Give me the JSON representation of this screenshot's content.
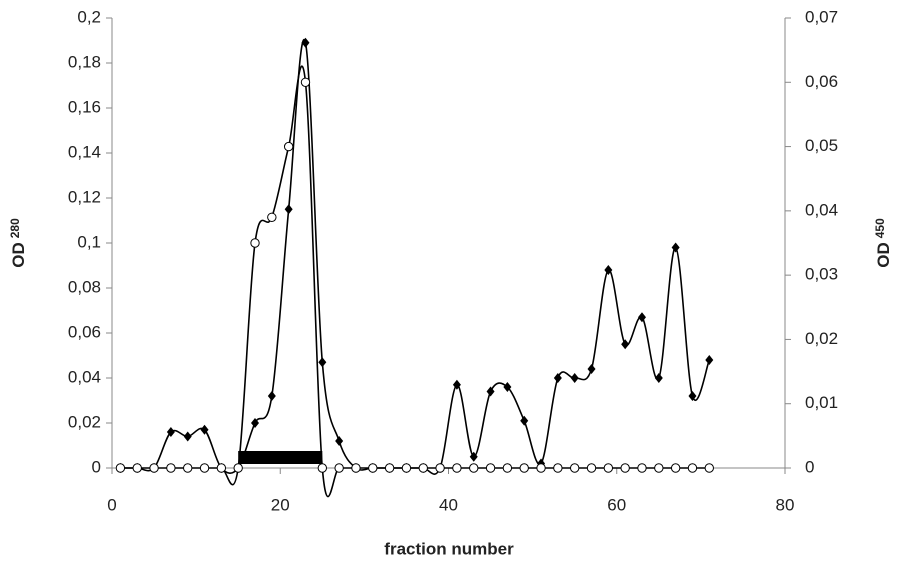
{
  "chart_data": {
    "type": "line",
    "x_label": "fraction number",
    "y_label": "OD",
    "y_label_subscript": "280",
    "y2_label": "OD",
    "y2_label_subscript": "450",
    "x": [
      1,
      3,
      5,
      7,
      9,
      11,
      13,
      15,
      17,
      19,
      21,
      23,
      25,
      27,
      29,
      31,
      33,
      35,
      37,
      39,
      41,
      43,
      45,
      47,
      49,
      51,
      53,
      55,
      57,
      59,
      61,
      63,
      65,
      67,
      69,
      71
    ],
    "series": [
      {
        "marker": "diamond",
        "color": "#000000",
        "axis": "y",
        "values": [
          0,
          0,
          0,
          0.016,
          0.014,
          0.017,
          0,
          0,
          0.02,
          0.032,
          0.115,
          0.189,
          0.047,
          0.012,
          0,
          0,
          0,
          0,
          0,
          0,
          0.037,
          0.005,
          0.034,
          0.036,
          0.021,
          0.002,
          0.04,
          0.04,
          0.044,
          0.088,
          0.055,
          0.067,
          0.04,
          0.098,
          0.032,
          0.048
        ]
      },
      {
        "marker": "circle",
        "color": "#000000",
        "axis": "y2",
        "values": [
          0,
          0,
          0,
          0,
          0,
          0,
          0,
          0,
          0.035,
          0.039,
          0.05,
          0.06,
          0,
          0,
          0,
          0,
          0,
          0,
          0,
          0,
          0,
          0,
          0,
          0,
          0,
          0,
          0,
          0,
          0,
          0,
          0,
          0,
          0,
          0,
          0,
          0
        ]
      }
    ],
    "fraction_range": [
      15,
      25
    ],
    "xlim": [
      0,
      80
    ],
    "xticks": [
      0,
      20,
      40,
      60,
      80
    ],
    "ylim": [
      0,
      0.2
    ],
    "yticks": [
      {
        "value": 0,
        "label": "0"
      },
      {
        "value": 0.02,
        "label": "0,02"
      },
      {
        "value": 0.04,
        "label": "0,04"
      },
      {
        "value": 0.06,
        "label": "0,06"
      },
      {
        "value": 0.08,
        "label": "0,08"
      },
      {
        "value": 0.1,
        "label": "0,1"
      },
      {
        "value": 0.12,
        "label": "0,12"
      },
      {
        "value": 0.14,
        "label": "0,14"
      },
      {
        "value": 0.16,
        "label": "0,16"
      },
      {
        "value": 0.18,
        "label": "0,18"
      },
      {
        "value": 0.2,
        "label": "0,2"
      }
    ],
    "y2lim": [
      0,
      0.07
    ],
    "y2ticks": [
      {
        "value": 0,
        "label": "0"
      },
      {
        "value": 0.01,
        "label": "0,01"
      },
      {
        "value": 0.02,
        "label": "0,02"
      },
      {
        "value": 0.03,
        "label": "0,03"
      },
      {
        "value": 0.04,
        "label": "0,04"
      },
      {
        "value": 0.05,
        "label": "0,05"
      },
      {
        "value": 0.06,
        "label": "0,06"
      },
      {
        "value": 0.07,
        "label": "0,07"
      }
    ]
  }
}
